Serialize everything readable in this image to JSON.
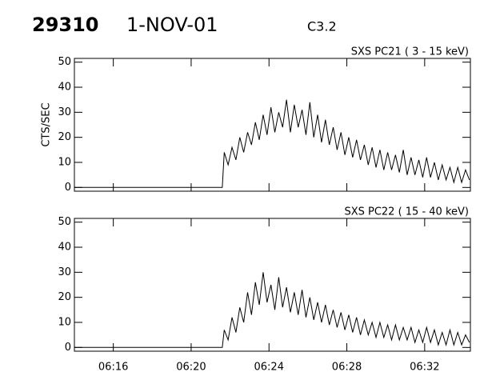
{
  "header": {
    "id": "29310",
    "date": "1-NOV-01",
    "class": "C3.2"
  },
  "chart_data": [
    {
      "type": "line",
      "title": "SXS PC21  (  3 - 15 keV)",
      "y_label": "CTS/SEC",
      "xlim": [
        374,
        394.35
      ],
      "xticks": [
        376,
        380,
        384,
        388,
        392
      ],
      "ylim": [
        -1.5,
        51.5
      ],
      "yticks": [
        0,
        10,
        20,
        30,
        40,
        50
      ],
      "x": [
        374,
        378,
        381.6,
        381.7,
        381.9,
        382.1,
        382.3,
        382.5,
        382.7,
        382.9,
        383.1,
        383.3,
        383.5,
        383.7,
        383.9,
        384.1,
        384.3,
        384.5,
        384.7,
        384.9,
        385.1,
        385.3,
        385.5,
        385.7,
        385.9,
        386.1,
        386.3,
        386.5,
        386.7,
        386.9,
        387.1,
        387.3,
        387.5,
        387.7,
        387.9,
        388.1,
        388.3,
        388.5,
        388.7,
        388.9,
        389.1,
        389.3,
        389.5,
        389.7,
        389.9,
        390.1,
        390.3,
        390.5,
        390.7,
        390.9,
        391.1,
        391.3,
        391.5,
        391.7,
        391.9,
        392.1,
        392.3,
        392.5,
        392.7,
        392.9,
        393.1,
        393.3,
        393.5,
        393.7,
        393.9,
        394.1,
        394.3
      ],
      "series": [
        {
          "color": "#000000",
          "values": [
            0,
            0,
            0,
            14,
            9,
            16,
            11,
            20,
            14,
            22,
            17,
            26,
            19,
            29,
            21,
            32,
            22,
            30,
            24,
            35,
            22,
            33,
            24,
            31,
            21,
            34,
            20,
            29,
            18,
            27,
            17,
            24,
            15,
            22,
            13,
            20,
            12,
            19,
            11,
            17,
            9,
            16,
            8,
            15,
            7,
            14,
            7,
            13,
            6,
            15,
            5,
            12,
            5,
            11,
            4,
            12,
            4,
            10,
            3,
            9,
            3,
            8,
            2,
            8,
            2,
            7,
            3
          ]
        }
      ]
    },
    {
      "type": "line",
      "title": "SXS PC22  ( 15 - 40 keV)",
      "xlim": [
        374,
        394.35
      ],
      "xticks": [
        {
          "value": 376,
          "label": "06:16"
        },
        {
          "value": 380,
          "label": "06:20"
        },
        {
          "value": 384,
          "label": "06:24"
        },
        {
          "value": 388,
          "label": "06:28"
        },
        {
          "value": 392,
          "label": "06:32"
        }
      ],
      "ylim": [
        -1.5,
        51.5
      ],
      "yticks": [
        0,
        10,
        20,
        30,
        40,
        50
      ],
      "x": [
        374,
        378,
        381.6,
        381.7,
        381.9,
        382.1,
        382.3,
        382.5,
        382.7,
        382.9,
        383.1,
        383.3,
        383.5,
        383.7,
        383.9,
        384.1,
        384.3,
        384.5,
        384.7,
        384.9,
        385.1,
        385.3,
        385.5,
        385.7,
        385.9,
        386.1,
        386.3,
        386.5,
        386.7,
        386.9,
        387.1,
        387.3,
        387.5,
        387.7,
        387.9,
        388.1,
        388.3,
        388.5,
        388.7,
        388.9,
        389.1,
        389.3,
        389.5,
        389.7,
        389.9,
        390.1,
        390.3,
        390.5,
        390.7,
        390.9,
        391.1,
        391.3,
        391.5,
        391.7,
        391.9,
        392.1,
        392.3,
        392.5,
        392.7,
        392.9,
        393.1,
        393.3,
        393.5,
        393.7,
        393.9,
        394.1,
        394.3
      ],
      "series": [
        {
          "color": "#000000",
          "values": [
            0,
            0,
            0,
            7,
            3,
            12,
            6,
            16,
            10,
            22,
            13,
            26,
            17,
            30,
            18,
            25,
            15,
            28,
            16,
            24,
            14,
            22,
            13,
            23,
            12,
            20,
            11,
            18,
            10,
            17,
            9,
            15,
            8,
            14,
            7,
            13,
            6,
            12,
            5,
            11,
            5,
            10,
            4,
            10,
            4,
            9,
            3,
            9,
            3,
            8,
            3,
            8,
            2,
            7,
            2,
            8,
            2,
            7,
            1,
            6,
            1,
            7,
            1,
            6,
            1,
            5,
            2
          ]
        }
      ]
    }
  ]
}
